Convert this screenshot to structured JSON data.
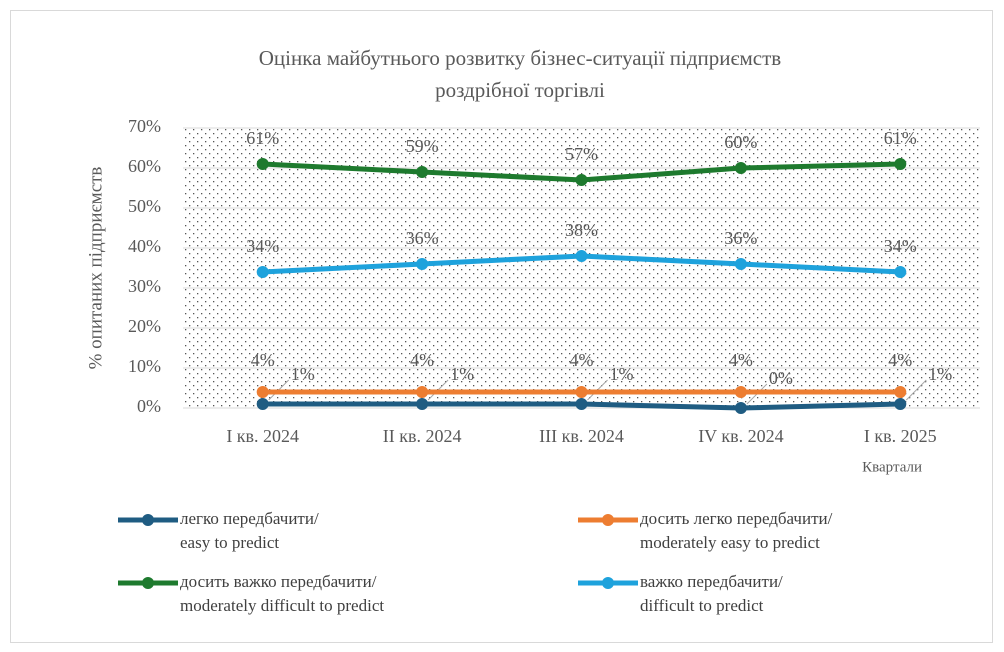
{
  "chart_data": {
    "type": "line",
    "title": [
      "Оцінка майбутнього розвитку бізнес-ситуації підприємств",
      "роздрібної торгівлі"
    ],
    "y_label": "% опитаних підприємств",
    "x_label": "Квартали",
    "categories": [
      "I кв. 2024",
      "II кв. 2024",
      "III кв. 2024",
      "IV кв. 2024",
      "I кв. 2025"
    ],
    "ylim": [
      0,
      70
    ],
    "yticks": [
      {
        "value": 0,
        "label": "0%"
      },
      {
        "value": 10,
        "label": "10%"
      },
      {
        "value": 20,
        "label": "20%"
      },
      {
        "value": 30,
        "label": "30%"
      },
      {
        "value": 40,
        "label": "40%"
      },
      {
        "value": 50,
        "label": "50%"
      },
      {
        "value": 60,
        "label": "60%"
      },
      {
        "value": 70,
        "label": "70%"
      }
    ],
    "grid": true,
    "series": [
      {
        "name": "легко передбачити/\neasy to predict",
        "color": "#1f5c82",
        "values": [
          1,
          1,
          1,
          0,
          1
        ],
        "value_labels": [
          "1%",
          "1%",
          "1%",
          "0%",
          "1%"
        ]
      },
      {
        "name": "досить легко передбачити/\nmoderately easy to predict",
        "color": "#ed7d31",
        "values": [
          4,
          4,
          4,
          4,
          4
        ],
        "value_labels": [
          "4%",
          "4%",
          "4%",
          "4%",
          "4%"
        ]
      },
      {
        "name": "досить важко передбачити/\nmoderately difficult to predict",
        "color": "#1e7a2e",
        "values": [
          61,
          59,
          57,
          60,
          61
        ],
        "value_labels": [
          "61%",
          "59%",
          "57%",
          "60%",
          "61%"
        ]
      },
      {
        "name": "важко  передбачити/\ndifficult to predict",
        "color": "#1ea2dc",
        "values": [
          34,
          36,
          38,
          36,
          34
        ],
        "value_labels": [
          "34%",
          "36%",
          "38%",
          "36%",
          "34%"
        ]
      }
    ]
  }
}
